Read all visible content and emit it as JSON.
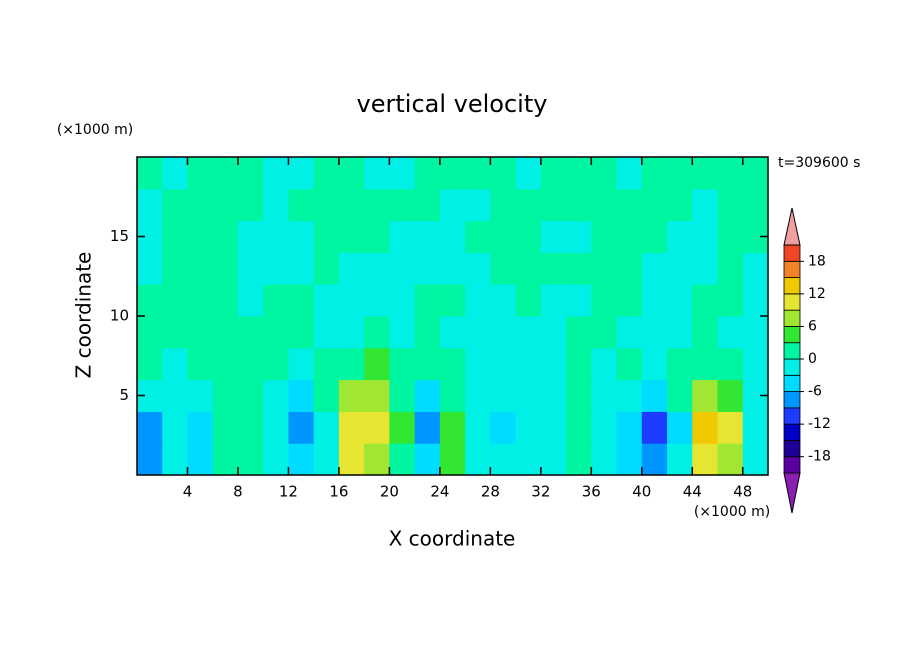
{
  "chart_data": {
    "type": "contour",
    "title": "vertical velocity",
    "xlabel": "X coordinate",
    "ylabel": "Z coordinate",
    "x_unit": "(×1000 m)",
    "y_unit": "(×1000 m)",
    "time_label": "t=309600 s",
    "xlim": [
      0,
      50
    ],
    "ylim": [
      0,
      20
    ],
    "xticks": [
      4,
      8,
      12,
      16,
      20,
      24,
      28,
      32,
      36,
      40,
      44,
      48
    ],
    "yticks": [
      5,
      10,
      15
    ],
    "x_edges": [
      0,
      2,
      4,
      6,
      8,
      10,
      12,
      14,
      16,
      18,
      20,
      22,
      24,
      26,
      28,
      30,
      32,
      34,
      36,
      38,
      40,
      42,
      44,
      46,
      48,
      50
    ],
    "z_edges": [
      0,
      2,
      4,
      6,
      8,
      10,
      12,
      14,
      16,
      18,
      20
    ],
    "values": [
      [
        -8,
        -3,
        -5,
        1,
        1,
        -3,
        -5,
        -1,
        9,
        6,
        1,
        -6,
        4,
        -1,
        -3,
        -2,
        -1,
        1,
        -1,
        -4,
        -7,
        -2,
        11,
        7,
        -3
      ],
      [
        -7,
        -2,
        -6,
        1,
        2,
        -3,
        -8,
        -2,
        11,
        10,
        3,
        -9,
        5,
        -2,
        -4,
        -3,
        -1,
        2,
        -3,
        -6,
        -11,
        -4,
        14,
        9,
        -2
      ],
      [
        -2,
        -1,
        -3,
        1,
        1,
        -2,
        -4,
        1,
        6,
        8,
        2,
        -4,
        2,
        -1,
        -2,
        -2,
        -1,
        1,
        -1,
        -3,
        -4,
        1,
        8,
        4,
        -1
      ],
      [
        1,
        -1,
        1,
        2,
        1,
        1,
        -1,
        1,
        2,
        3,
        1,
        2,
        1,
        -1,
        -1,
        -1,
        -1,
        1,
        -1,
        1,
        -1,
        2,
        1,
        1,
        -1
      ],
      [
        1,
        1,
        1,
        1,
        1,
        2,
        1,
        -1,
        -1,
        1,
        -1,
        1,
        -1,
        -1,
        -1,
        -1,
        -1,
        1,
        1,
        -1,
        -1,
        -1,
        1,
        -1,
        -1
      ],
      [
        1,
        1,
        1,
        1,
        -1,
        1,
        1,
        -1,
        -1,
        -1,
        -1,
        1,
        1,
        -1,
        -1,
        1,
        -1,
        -1,
        1,
        1,
        -1,
        -1,
        1,
        1,
        -1
      ],
      [
        -1,
        1,
        1,
        1,
        -1,
        -1,
        -1,
        1,
        -1,
        -1,
        -1,
        -1,
        -1,
        -1,
        1,
        1,
        1,
        1,
        1,
        1,
        -1,
        -1,
        -1,
        1,
        -1
      ],
      [
        -1,
        1,
        1,
        1,
        -1,
        -1,
        -1,
        1,
        1,
        1,
        -1,
        -1,
        -1,
        1,
        1,
        1,
        -1,
        -1,
        1,
        1,
        1,
        -1,
        -1,
        1,
        1
      ],
      [
        -1,
        1,
        1,
        1,
        1,
        -1,
        1,
        1,
        1,
        1,
        1,
        1,
        -1,
        -1,
        1,
        1,
        1,
        1,
        1,
        1,
        1,
        1,
        -1,
        1,
        1
      ],
      [
        1,
        -1,
        1,
        1,
        1,
        -1,
        -1,
        1,
        1,
        -1,
        -1,
        1,
        1,
        1,
        1,
        -1,
        1,
        1,
        1,
        -1,
        1,
        1,
        1,
        1,
        1
      ]
    ],
    "levels": [
      -21,
      -18,
      -15,
      -12,
      -9,
      -6,
      -3,
      0,
      3,
      6,
      9,
      12,
      15,
      18,
      21
    ],
    "colors": [
      "#8c1eb4",
      "#5a00a0",
      "#1e0096",
      "#0000c8",
      "#1e3cff",
      "#0096ff",
      "#00dcff",
      "#00f0e6",
      "#00f5a0",
      "#32e632",
      "#a0e632",
      "#e6e632",
      "#f0c800",
      "#f08228",
      "#f04628",
      "#f0a0a0"
    ],
    "cbar_ticks": [
      -18,
      -12,
      -6,
      0,
      6,
      12,
      18
    ]
  }
}
